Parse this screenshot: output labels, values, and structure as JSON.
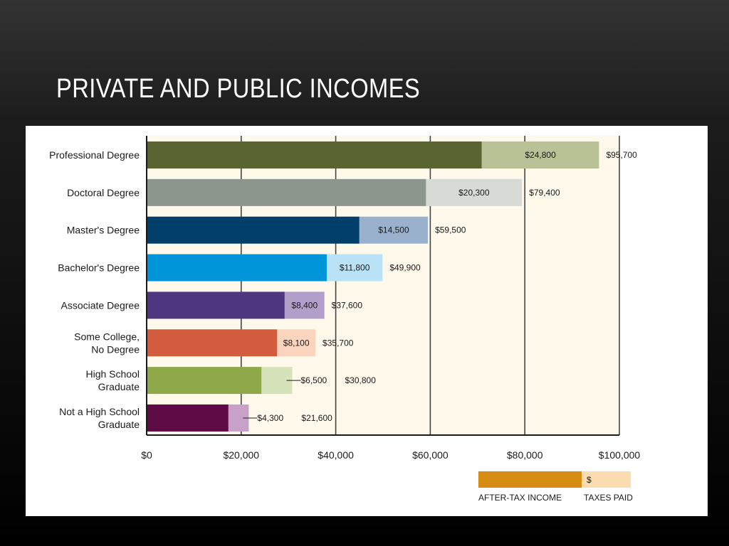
{
  "slide": {
    "title": "Private and Public Incomes"
  },
  "chart_data": {
    "type": "bar",
    "orientation": "horizontal",
    "stacked": true,
    "categories": [
      "Professional Degree",
      "Doctoral Degree",
      "Master's Degree",
      "Bachelor's Degree",
      "Associate Degree",
      "Some College,\nNo Degree",
      "High School\nGraduate",
      "Not a High School\nGraduate"
    ],
    "totals": [
      95700,
      79400,
      59500,
      49900,
      37600,
      35700,
      30800,
      21600
    ],
    "total_labels": [
      "$95,700",
      "$79,400",
      "$59,500",
      "$49,900",
      "$37,600",
      "$35,700",
      "$30,800",
      "$21,600"
    ],
    "series": [
      {
        "name": "AFTER-TAX INCOME",
        "values": [
          70900,
          59100,
          45000,
          38100,
          29200,
          27600,
          24300,
          17300
        ]
      },
      {
        "name": "TAXES PAID",
        "values": [
          24800,
          20300,
          14500,
          11800,
          8400,
          8100,
          6500,
          4300
        ]
      }
    ],
    "tax_labels": [
      "$24,800",
      "$20,300",
      "$14,500",
      "$11,800",
      "$8,400",
      "$8,100",
      "$6,500",
      "$4,300"
    ],
    "colors": {
      "after_tax": [
        "#5a6431",
        "#8c968d",
        "#003f6a",
        "#0095d9",
        "#4e3681",
        "#d25c3d",
        "#8ea84a",
        "#5e0a45"
      ],
      "taxes": [
        "#b9c196",
        "#d6dbd5",
        "#9ab1cd",
        "#bae2f7",
        "#b19ec9",
        "#fad4bd",
        "#d6e2ba",
        "#c8a1c8"
      ]
    },
    "plot_background": "#fef9ea",
    "xlim": [
      0,
      100000
    ],
    "xticks": [
      0,
      20000,
      40000,
      60000,
      80000,
      100000
    ],
    "xtick_labels": [
      "$0",
      "$20,000",
      "$40,000",
      "$60,000",
      "$80,000",
      "$100,000"
    ],
    "grid": true,
    "legend": {
      "position": "bottom-right",
      "after_tax_label": "AFTER-TAX INCOME",
      "taxes_label": "TAXES PAID",
      "taxes_symbol": "$",
      "after_tax_color": "#d68b12",
      "taxes_color": "#fbdcb1"
    }
  }
}
